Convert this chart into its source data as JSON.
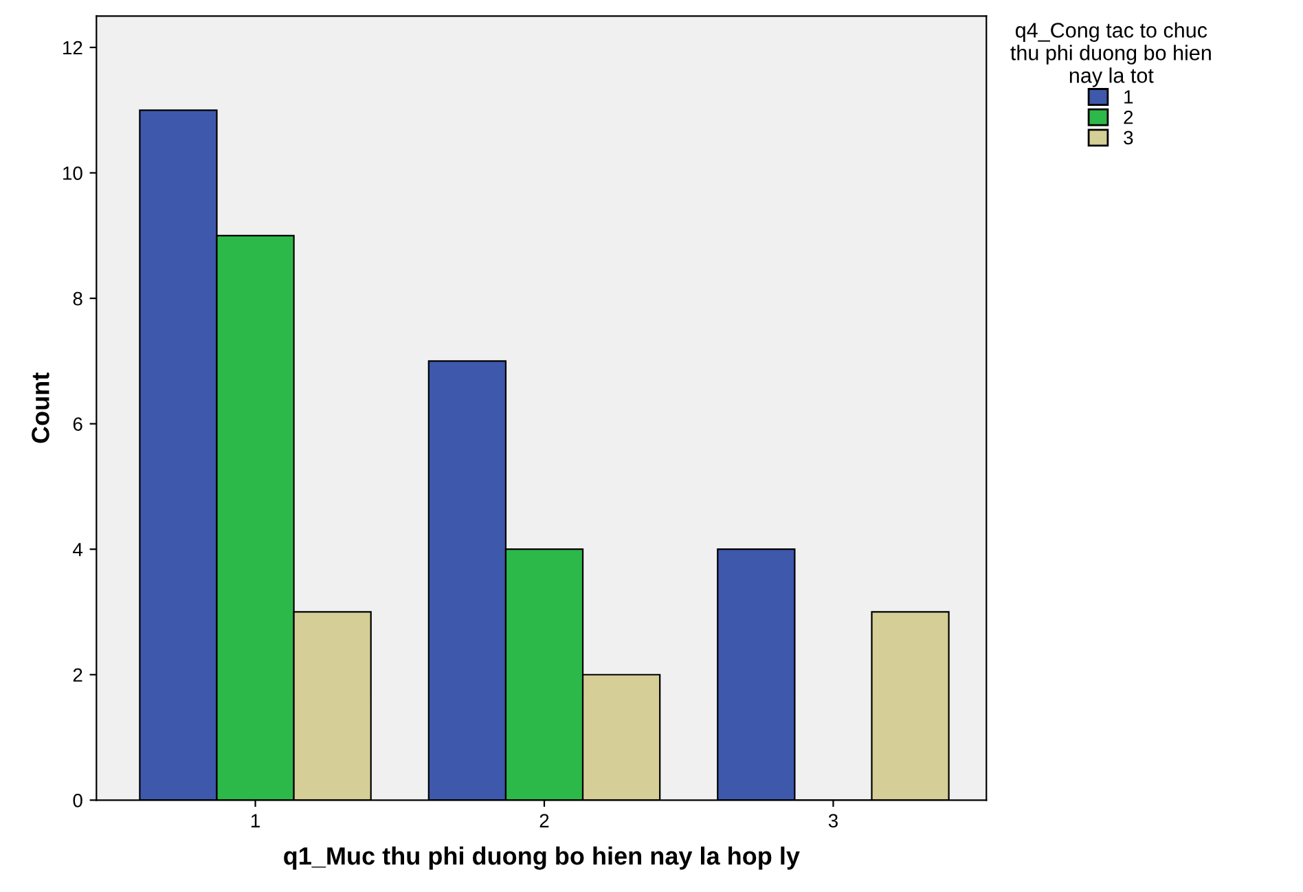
{
  "chart_data": {
    "type": "bar",
    "xlabel": "q1_Muc thu phi duong bo hien nay la hop ly",
    "ylabel": "Count",
    "legend_title": "q4_Cong tac to chuc\nthu phi duong bo hien\nnay la tot",
    "categories": [
      "1",
      "2",
      "3"
    ],
    "series": [
      {
        "name": "1",
        "color": "#3e58ac",
        "values": [
          11,
          7,
          4
        ]
      },
      {
        "name": "2",
        "color": "#2db84a",
        "values": [
          9,
          4,
          0
        ]
      },
      {
        "name": "3",
        "color": "#d5ce96",
        "values": [
          3,
          2,
          3
        ]
      }
    ],
    "ylim": [
      0,
      12.5
    ],
    "yticks": [
      0,
      2,
      4,
      6,
      8,
      10,
      12
    ],
    "grid": false,
    "legend": "right"
  }
}
